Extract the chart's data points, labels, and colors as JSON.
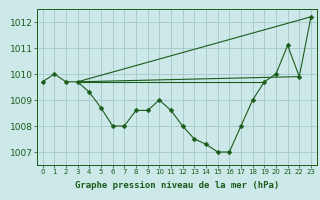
{
  "title": "Graphe pression niveau de la mer (hPa)",
  "bg_color": "#cce8e8",
  "grid_color": "#aacccc",
  "line_color": "#1a5c1a",
  "xlim": [
    -0.5,
    23.5
  ],
  "ylim": [
    1006.5,
    1012.5
  ],
  "yticks": [
    1007,
    1008,
    1009,
    1010,
    1011,
    1012
  ],
  "xticks": [
    0,
    1,
    2,
    3,
    4,
    5,
    6,
    7,
    8,
    9,
    10,
    11,
    12,
    13,
    14,
    15,
    16,
    17,
    18,
    19,
    20,
    21,
    22,
    23
  ],
  "main_series_x": [
    0,
    1,
    2,
    3,
    4,
    5,
    6,
    7,
    8,
    9,
    10,
    11,
    12,
    13,
    14,
    15,
    16,
    17,
    18,
    19,
    20,
    21,
    22,
    23
  ],
  "main_series_y": [
    1009.7,
    1010.0,
    1009.7,
    1009.7,
    1009.3,
    1008.7,
    1008.0,
    1008.0,
    1008.6,
    1008.6,
    1009.0,
    1008.6,
    1008.0,
    1007.5,
    1007.3,
    1007.0,
    1007.0,
    1008.0,
    1009.0,
    1009.7,
    1010.0,
    1011.1,
    1009.9,
    1012.2
  ],
  "fan_lines": [
    {
      "x": [
        3,
        23
      ],
      "y": [
        1009.7,
        1012.2
      ]
    },
    {
      "x": [
        3,
        22
      ],
      "y": [
        1009.7,
        1009.9
      ]
    },
    {
      "x": [
        3,
        19
      ],
      "y": [
        1009.7,
        1009.7
      ]
    }
  ],
  "ylabel_fontsize": 6.5,
  "xlabel_fontsize": 5.5,
  "title_fontsize": 6.5,
  "marker_size": 2.5,
  "linewidth": 0.8
}
